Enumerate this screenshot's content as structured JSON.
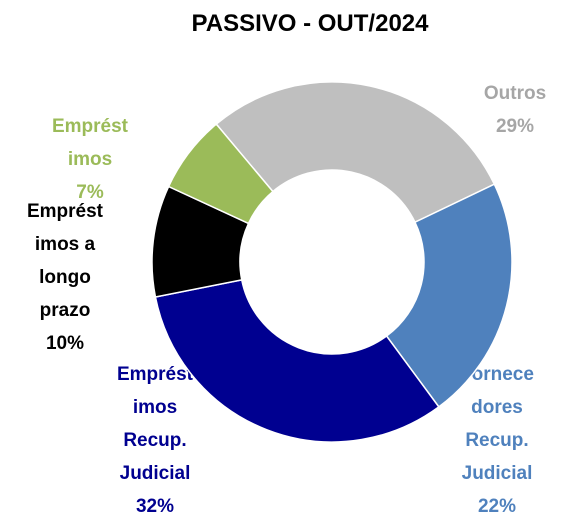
{
  "chart_data": {
    "type": "donut",
    "title": "PASSIVO - OUT/2024",
    "categories": [
      "Outros",
      "Fornecedores Recup. Judicial",
      "Empréstimos Recup. Judicial",
      "Empréstimos a longo prazo",
      "Empréstimos"
    ],
    "values": [
      29,
      22,
      32,
      10,
      7
    ],
    "value_labels": [
      "29%",
      "22%",
      "32%",
      "10%",
      "7%"
    ],
    "colors": [
      "#bfbfbf",
      "#4f81bd",
      "#000090",
      "#000000",
      "#9bbb59"
    ]
  }
}
